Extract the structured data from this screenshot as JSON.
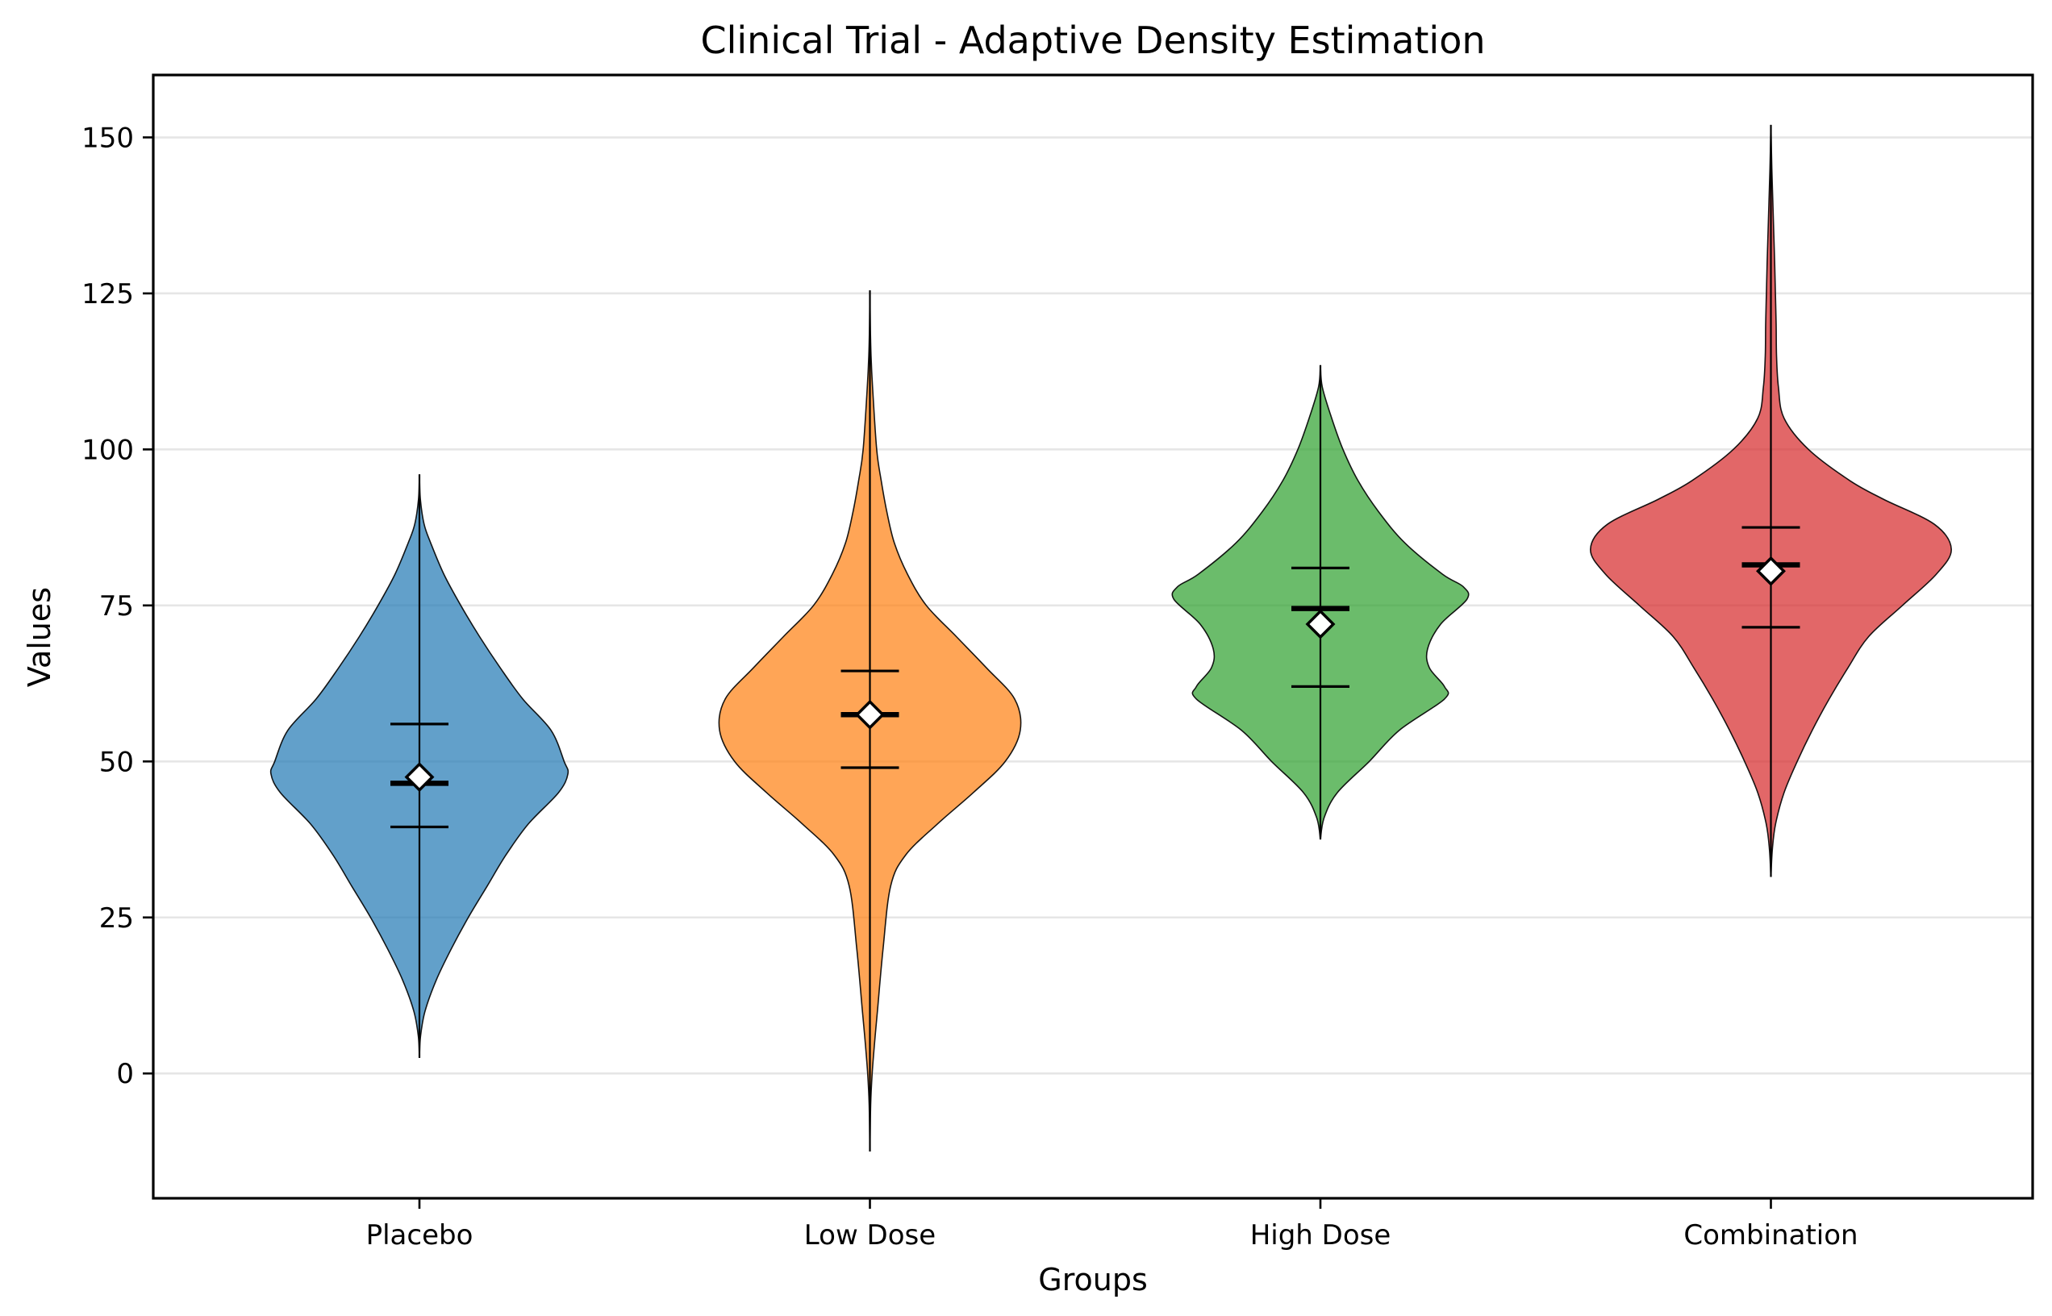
{
  "chart_data": {
    "type": "violin",
    "title": "Clinical Trial - Adaptive Density Estimation",
    "xlabel": "Groups",
    "ylabel": "Values",
    "ylim": [
      -20,
      160
    ],
    "yticks": [
      0,
      25,
      50,
      75,
      100,
      125,
      150
    ],
    "ytick_labels": [
      "0",
      "25",
      "50",
      "75",
      "100",
      "125",
      "150"
    ],
    "grid": "horizontal",
    "categories": [
      "Placebo",
      "Low Dose",
      "High Dose",
      "Combination"
    ],
    "colors": [
      "#1f77b4",
      "#ff7f0e",
      "#2ca02c",
      "#d62728"
    ],
    "groups": [
      {
        "name": "Placebo",
        "min": 2.5,
        "max": 96,
        "q1": 39.5,
        "median": 46.5,
        "q3": 56,
        "mean": 47.5,
        "density": [
          [
            2.5,
            0
          ],
          [
            6,
            0.006
          ],
          [
            10,
            0.03
          ],
          [
            15,
            0.09
          ],
          [
            20,
            0.17
          ],
          [
            25,
            0.26
          ],
          [
            30,
            0.36
          ],
          [
            35,
            0.46
          ],
          [
            40,
            0.58
          ],
          [
            45,
            0.74
          ],
          [
            48,
            0.79
          ],
          [
            50,
            0.77
          ],
          [
            55,
            0.7
          ],
          [
            60,
            0.55
          ],
          [
            65,
            0.43
          ],
          [
            70,
            0.32
          ],
          [
            75,
            0.22
          ],
          [
            80,
            0.13
          ],
          [
            85,
            0.06
          ],
          [
            88,
            0.025
          ],
          [
            92,
            0.005
          ],
          [
            96,
            0
          ]
        ]
      },
      {
        "name": "Low Dose",
        "min": -12.5,
        "max": 125.5,
        "q1": 49,
        "median": 57.5,
        "q3": 64.5,
        "mean": 57.5,
        "density": [
          [
            -12.5,
            0
          ],
          [
            -5,
            0.004
          ],
          [
            0,
            0.012
          ],
          [
            5,
            0.025
          ],
          [
            10,
            0.04
          ],
          [
            20,
            0.07
          ],
          [
            30,
            0.11
          ],
          [
            35,
            0.19
          ],
          [
            40,
            0.36
          ],
          [
            45,
            0.55
          ],
          [
            50,
            0.72
          ],
          [
            55,
            0.8
          ],
          [
            60,
            0.77
          ],
          [
            65,
            0.62
          ],
          [
            70,
            0.46
          ],
          [
            75,
            0.3
          ],
          [
            80,
            0.2
          ],
          [
            85,
            0.13
          ],
          [
            90,
            0.09
          ],
          [
            95,
            0.06
          ],
          [
            100,
            0.036
          ],
          [
            110,
            0.014
          ],
          [
            115,
            0.006
          ],
          [
            120,
            0.002
          ],
          [
            125.5,
            0
          ]
        ]
      },
      {
        "name": "High Dose",
        "min": 37.5,
        "max": 113.5,
        "q1": 62,
        "median": 74.5,
        "q3": 81,
        "mean": 72,
        "density": [
          [
            37.5,
            0
          ],
          [
            41,
            0.02
          ],
          [
            45,
            0.09
          ],
          [
            50,
            0.26
          ],
          [
            55,
            0.42
          ],
          [
            60,
            0.66
          ],
          [
            62,
            0.66
          ],
          [
            65,
            0.58
          ],
          [
            68,
            0.57
          ],
          [
            72,
            0.64
          ],
          [
            76,
            0.78
          ],
          [
            78,
            0.76
          ],
          [
            80,
            0.65
          ],
          [
            85,
            0.45
          ],
          [
            90,
            0.31
          ],
          [
            95,
            0.2
          ],
          [
            100,
            0.12
          ],
          [
            105,
            0.06
          ],
          [
            110,
            0.01
          ],
          [
            113.5,
            0
          ]
        ]
      },
      {
        "name": "Combination",
        "min": 31.5,
        "max": 152,
        "q1": 71.5,
        "median": 81.5,
        "q3": 87.5,
        "mean": 80.5,
        "density": [
          [
            31.5,
            0
          ],
          [
            36,
            0.008
          ],
          [
            40,
            0.025
          ],
          [
            45,
            0.07
          ],
          [
            50,
            0.14
          ],
          [
            55,
            0.22
          ],
          [
            60,
            0.31
          ],
          [
            65,
            0.41
          ],
          [
            70,
            0.52
          ],
          [
            75,
            0.7
          ],
          [
            80,
            0.88
          ],
          [
            84,
            0.96
          ],
          [
            88,
            0.87
          ],
          [
            92,
            0.6
          ],
          [
            95,
            0.42
          ],
          [
            100,
            0.2
          ],
          [
            105,
            0.07
          ],
          [
            110,
            0.04
          ],
          [
            115,
            0.03
          ],
          [
            120,
            0.028
          ],
          [
            125,
            0.024
          ],
          [
            130,
            0.02
          ],
          [
            135,
            0.015
          ],
          [
            140,
            0.01
          ],
          [
            145,
            0.005
          ],
          [
            152,
            0
          ]
        ]
      }
    ]
  }
}
